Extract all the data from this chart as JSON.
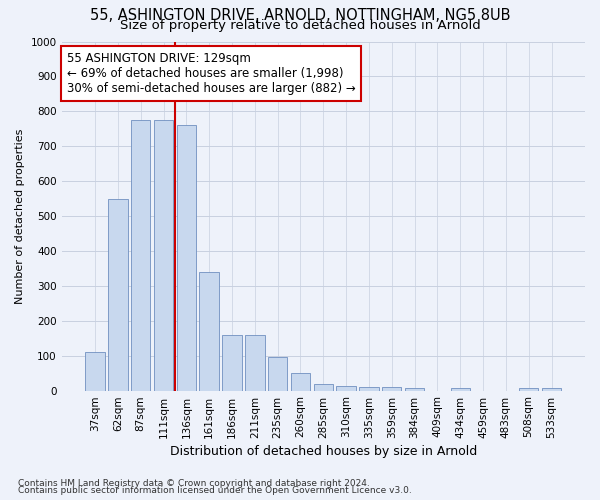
{
  "title": "55, ASHINGTON DRIVE, ARNOLD, NOTTINGHAM, NG5 8UB",
  "subtitle": "Size of property relative to detached houses in Arnold",
  "xlabel": "Distribution of detached houses by size in Arnold",
  "ylabel": "Number of detached properties",
  "bar_labels": [
    "37sqm",
    "62sqm",
    "87sqm",
    "111sqm",
    "136sqm",
    "161sqm",
    "186sqm",
    "211sqm",
    "235sqm",
    "260sqm",
    "285sqm",
    "310sqm",
    "335sqm",
    "359sqm",
    "384sqm",
    "409sqm",
    "434sqm",
    "459sqm",
    "483sqm",
    "508sqm",
    "533sqm"
  ],
  "bar_values": [
    110,
    550,
    775,
    775,
    760,
    340,
    160,
    160,
    95,
    50,
    18,
    12,
    10,
    10,
    8,
    0,
    8,
    0,
    0,
    8,
    8
  ],
  "bar_color": "#c8d8ee",
  "bar_edgecolor": "#7090c0",
  "vline_x_index": 4,
  "vline_color": "#cc0000",
  "annotation_line1": "55 ASHINGTON DRIVE: 129sqm",
  "annotation_line2": "← 69% of detached houses are smaller (1,998)",
  "annotation_line3": "30% of semi-detached houses are larger (882) →",
  "annotation_box_edgecolor": "#cc0000",
  "annotation_box_facecolor": "#ffffff",
  "ylim": [
    0,
    1000
  ],
  "yticks": [
    0,
    100,
    200,
    300,
    400,
    500,
    600,
    700,
    800,
    900,
    1000
  ],
  "background_color": "#eef2fa",
  "grid_color": "#c8d0e0",
  "footer_line1": "Contains HM Land Registry data © Crown copyright and database right 2024.",
  "footer_line2": "Contains public sector information licensed under the Open Government Licence v3.0.",
  "title_fontsize": 10.5,
  "subtitle_fontsize": 9.5,
  "ylabel_fontsize": 8,
  "xlabel_fontsize": 9,
  "tick_fontsize": 7.5,
  "annotation_fontsize": 8.5,
  "footer_fontsize": 6.5
}
